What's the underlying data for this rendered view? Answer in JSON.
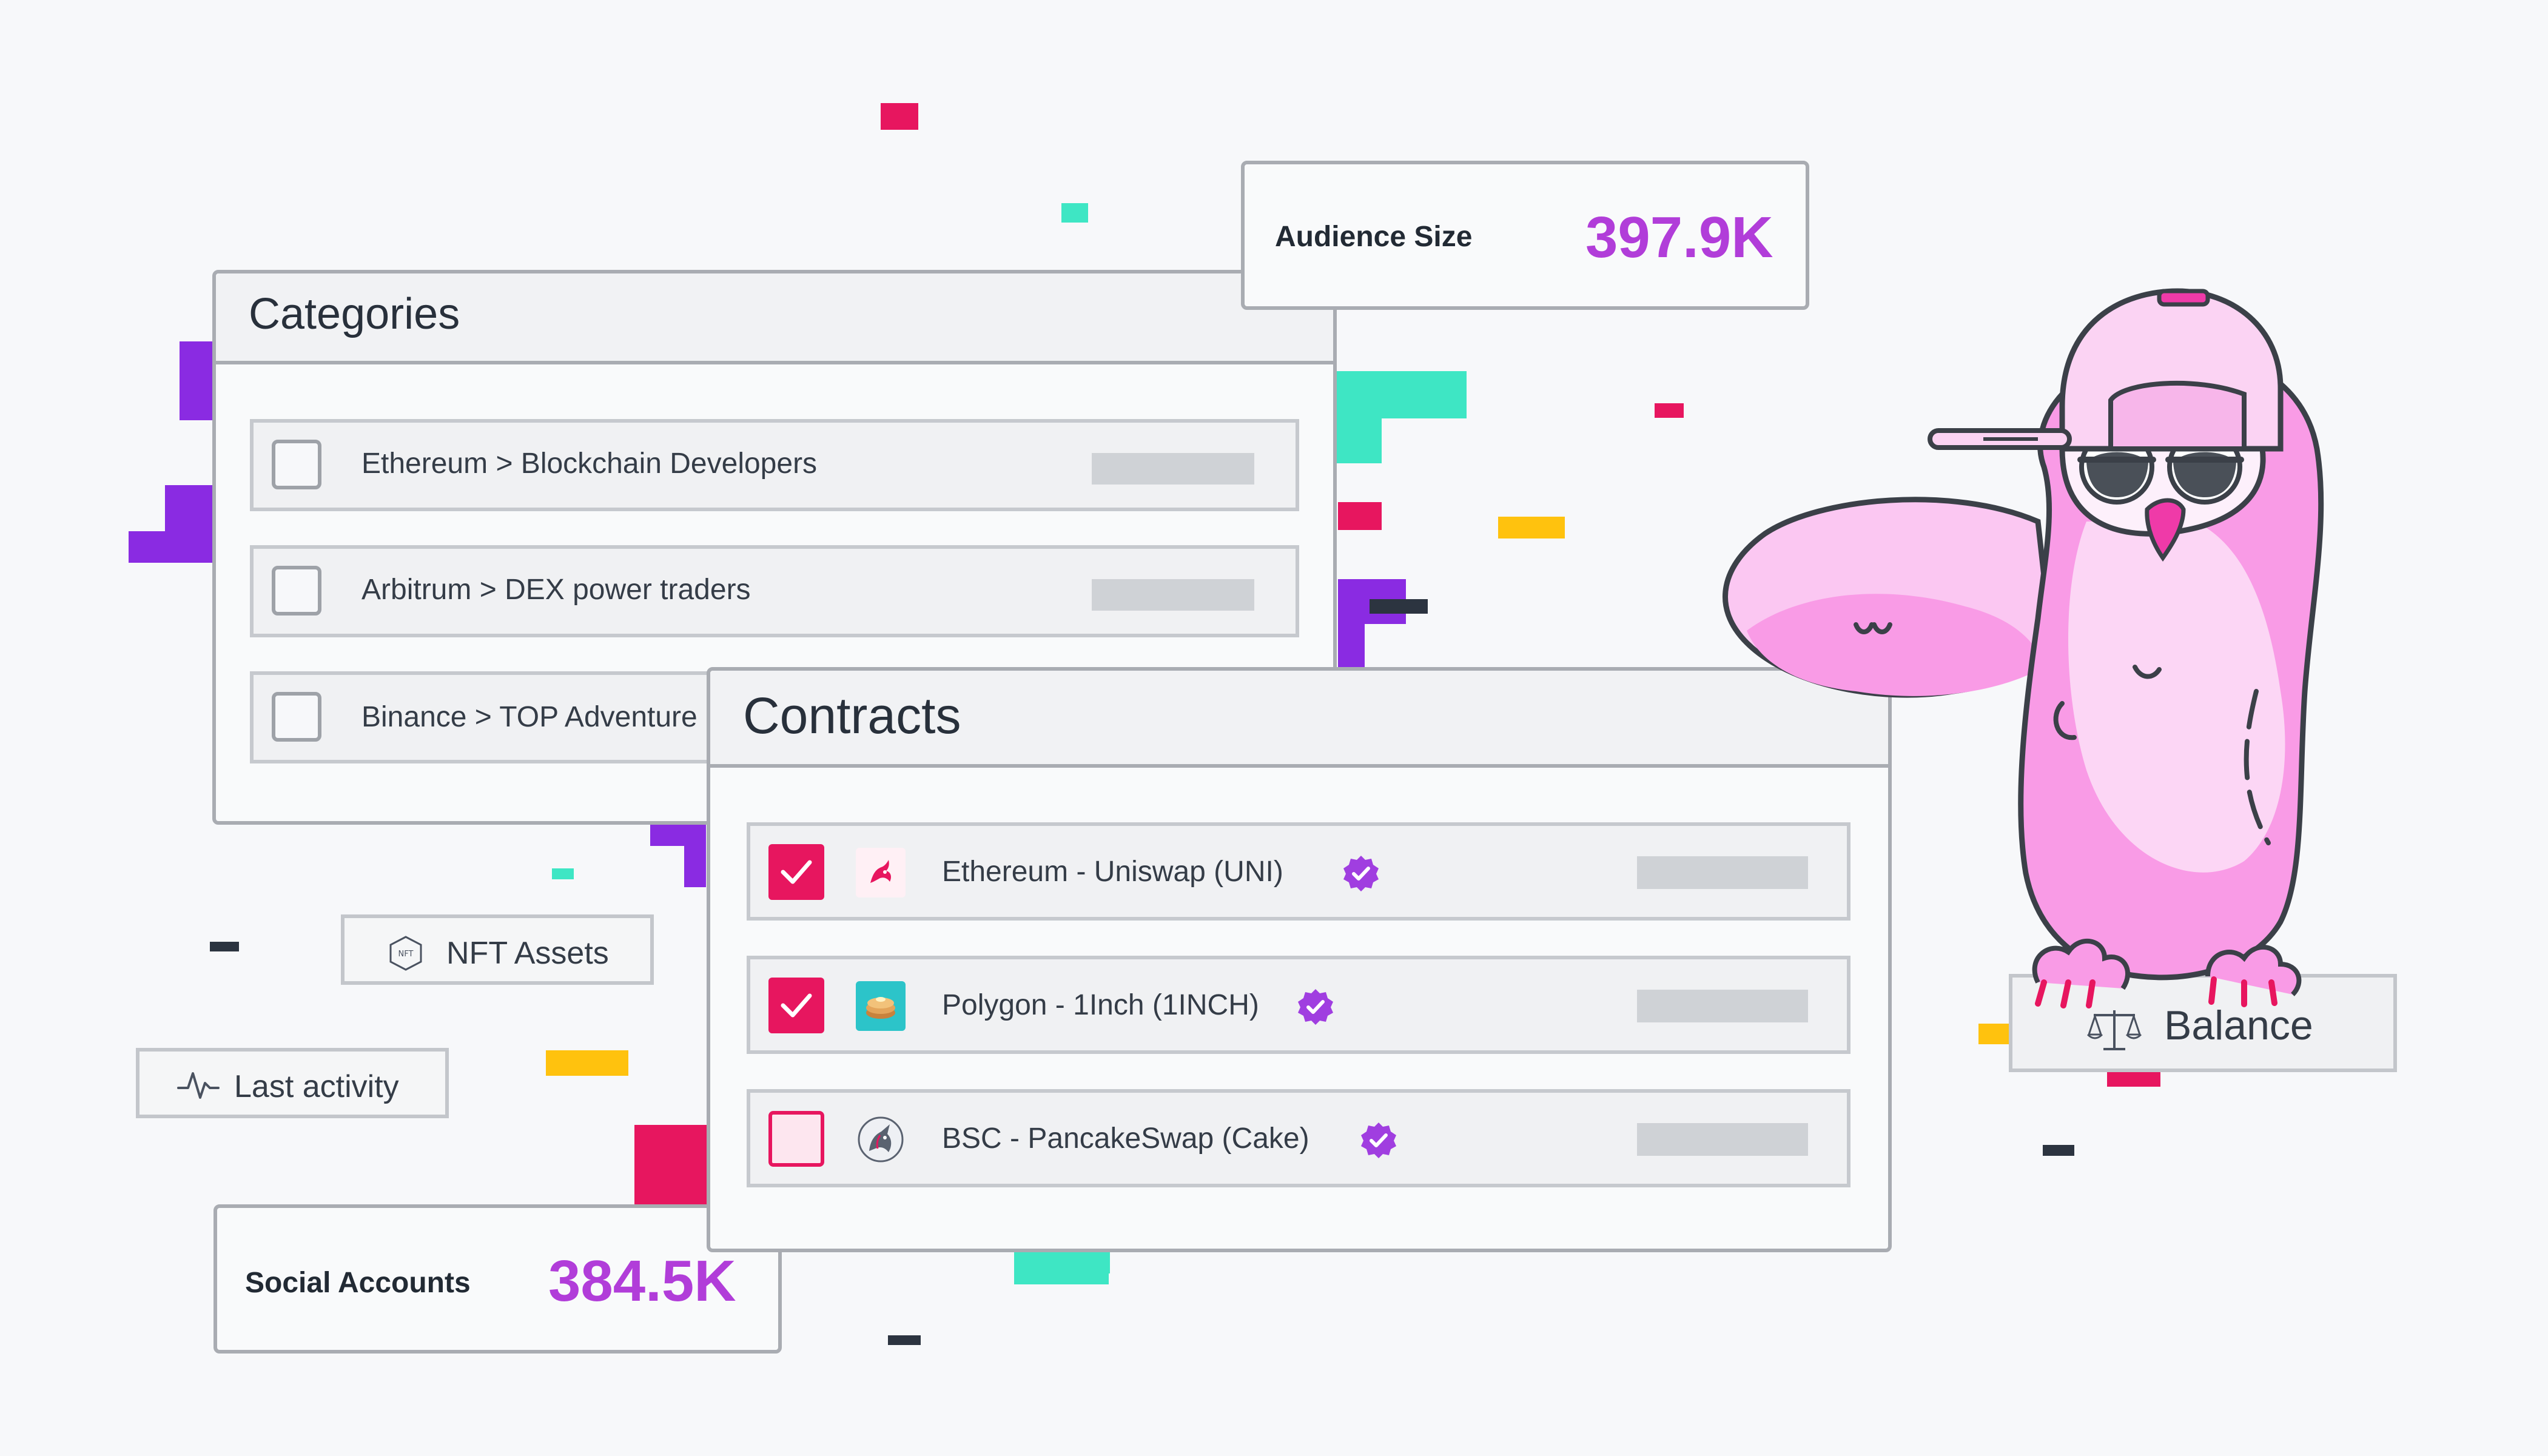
{
  "colors": {
    "accent_pink": "#e7165f",
    "accent_purple": "#8a2be2",
    "accent_teal": "#3ee6c4",
    "accent_yellow": "#ffc20e",
    "value_purple": "#b13dd9"
  },
  "audience": {
    "label": "Audience Size",
    "value": "397.9K"
  },
  "social": {
    "label": "Social Accounts",
    "value": "384.5K"
  },
  "categories": {
    "title": "Categories",
    "items": [
      {
        "label": "Ethereum > Blockchain Developers",
        "checked": false
      },
      {
        "label": "Arbitrum > DEX power traders",
        "checked": false
      },
      {
        "label": "Binance > TOP Adventure",
        "checked": false
      }
    ]
  },
  "contracts": {
    "title": "Contracts",
    "items": [
      {
        "label": "Ethereum - Uniswap (UNI)",
        "checked": true,
        "icon": "uniswap-icon"
      },
      {
        "label": "Polygon - 1Inch (1INCH)",
        "checked": true,
        "icon": "pancake-icon"
      },
      {
        "label": "BSC - PancakeSwap (Cake)",
        "checked": false,
        "icon": "1inch-unicorn-icon"
      }
    ]
  },
  "chips": {
    "nft": {
      "label": "NFT Assets",
      "icon": "nft-hexagon-icon",
      "icon_text": "NFT"
    },
    "activity": {
      "label": "Last activity",
      "icon": "activity-pulse-icon"
    },
    "balance": {
      "label": "Balance",
      "icon": "scales-icon"
    }
  },
  "mascot": {
    "name": "owl-mascot"
  }
}
